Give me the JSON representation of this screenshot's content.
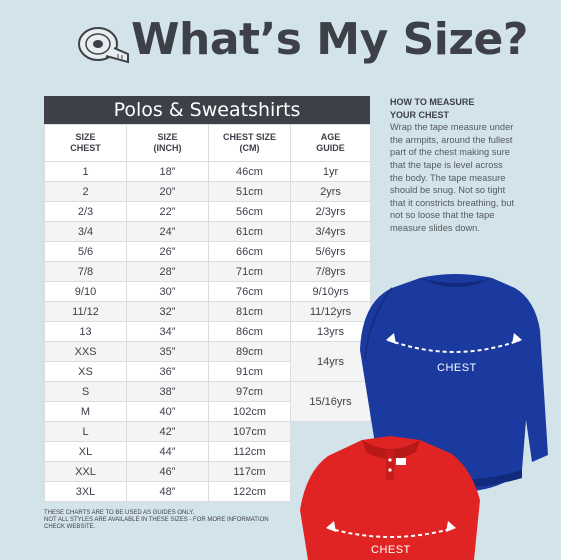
{
  "page": {
    "title": "What’s My Size?"
  },
  "table": {
    "heading": "Polos & Sweatshirts",
    "columns": [
      "SIZE\nCHEST",
      "SIZE\n(INCH)",
      "CHEST SIZE\n(CM)",
      "AGE\nGUIDE"
    ],
    "rows": [
      {
        "size": "1",
        "inch": "18”",
        "cm": "46cm",
        "age": "1yr"
      },
      {
        "size": "2",
        "inch": "20”",
        "cm": "51cm",
        "age": "2yrs"
      },
      {
        "size": "2/3",
        "inch": "22”",
        "cm": "56cm",
        "age": "2/3yrs"
      },
      {
        "size": "3/4",
        "inch": "24”",
        "cm": "61cm",
        "age": "3/4yrs"
      },
      {
        "size": "5/6",
        "inch": "26”",
        "cm": "66cm",
        "age": "5/6yrs"
      },
      {
        "size": "7/8",
        "inch": "28”",
        "cm": "71cm",
        "age": "7/8yrs"
      },
      {
        "size": "9/10",
        "inch": "30”",
        "cm": "76cm",
        "age": "9/10yrs"
      },
      {
        "size": "11/12",
        "inch": "32”",
        "cm": "81cm",
        "age": "11/12yrs"
      },
      {
        "size": "13",
        "inch": "34”",
        "cm": "86cm",
        "age": "13yrs"
      },
      {
        "size": "XXS",
        "inch": "35”",
        "cm": "89cm",
        "age": "14yrs"
      },
      {
        "size": "XS",
        "inch": "36”",
        "cm": "91cm",
        "age": ""
      },
      {
        "size": "S",
        "inch": "38”",
        "cm": "97cm",
        "age": "15/16yrs"
      },
      {
        "size": "M",
        "inch": "40”",
        "cm": "102cm",
        "age": ""
      },
      {
        "size": "L",
        "inch": "42”",
        "cm": "107cm",
        "age": ""
      },
      {
        "size": "XL",
        "inch": "44”",
        "cm": "112cm",
        "age": ""
      },
      {
        "size": "XXL",
        "inch": "46”",
        "cm": "117cm",
        "age": ""
      },
      {
        "size": "3XL",
        "inch": "48”",
        "cm": "122cm",
        "age": ""
      }
    ]
  },
  "notes": {
    "line1": "THESE CHARTS ARE TO BE USED AS GUIDES ONLY.",
    "line2": "NOT ALL STYLES ARE AVAILABLE IN THESE SIZES - FOR MORE INFORMATION",
    "line3": "CHECK WEBSITE."
  },
  "howto": {
    "title_line1": "HOW TO MEASURE",
    "title_line2": "YOUR CHEST",
    "body": "Wrap the tape measure under the armpits, around the fullest part of the chest making sure that the tape is level across the body. The tape measure should be snug. Not so tight that it constricts breathing, but not so loose that the tape measure slides down."
  },
  "garments": {
    "sweatshirt_label": "CHEST",
    "polo_label": "CHEST",
    "sweatshirt_color": "#1b3aa0",
    "polo_color": "#e02424"
  },
  "colors": {
    "background": "#d3e3ea",
    "dark": "#3e4049"
  }
}
